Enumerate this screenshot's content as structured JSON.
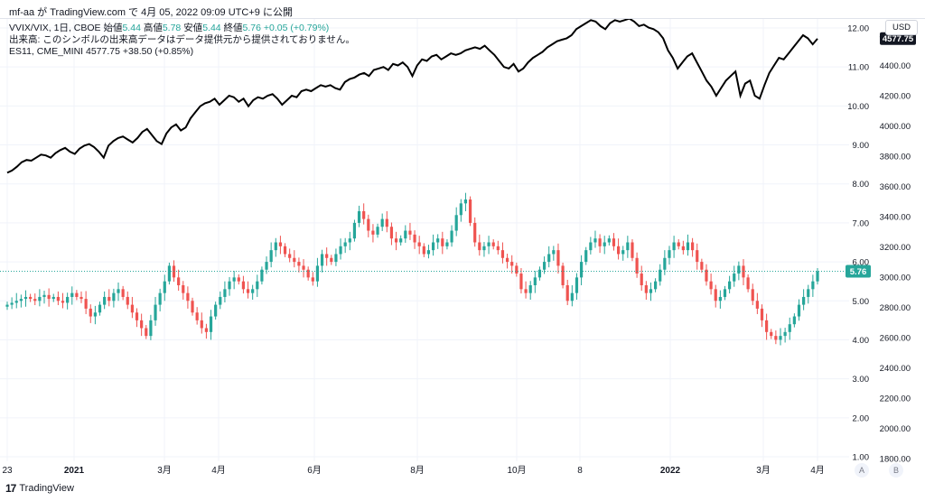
{
  "header": {
    "published_line": "mf-aa が TradingView.com で 4月 05, 2022 09:09 UTC+9 に公開"
  },
  "legend": {
    "line1_symbol": "VVIX/VIX, 1日, CBOE",
    "line1_open_label": "始値",
    "line1_open": "5.44",
    "line1_high_label": "高値",
    "line1_high": "5.78",
    "line1_low_label": "安値",
    "line1_low": "5.44",
    "line1_close_label": "終値",
    "line1_close": "5.76",
    "line1_change": "+0.05 (+0.79%)",
    "line2": "出来高: このシンボルの出来高データはデータ提供元から提供されておりません。",
    "line3_symbol": "ES11, CME_MINI",
    "line3_value": "4577.75",
    "line3_change": "+38.50 (+0.85%)"
  },
  "axis": {
    "currency_button": "USD",
    "right_btn_a": "A",
    "right_btn_b": "B"
  },
  "footer": {
    "brand": "TradingView",
    "logo_text": "17"
  },
  "colors": {
    "up": "#26a69a",
    "down": "#ef5350",
    "es_line": "#000000",
    "grid": "#f0f3fa",
    "last_label_vvix_bg": "#26a69a",
    "last_label_es_bg": "#131722"
  },
  "chart_data": {
    "type": "candlestick+line",
    "left_axis_ticks": [
      "1.00",
      "2.00",
      "3.00",
      "4.00",
      "5.00",
      "6.00",
      "7.00",
      "8.00",
      "9.00",
      "10.00",
      "11.00",
      "12.00"
    ],
    "right_axis_ticks": [
      "1800.00",
      "2000.00",
      "2200.00",
      "2400.00",
      "2600.00",
      "2800.00",
      "3000.00",
      "3200.00",
      "3400.00",
      "3600.00",
      "3800.00",
      "4000.00",
      "4200.00",
      "4400.00",
      "4600.00"
    ],
    "x_tick_labels": [
      {
        "label": "23"
      },
      {
        "label": "2021"
      },
      {
        "label": "3月"
      },
      {
        "label": "4月"
      },
      {
        "label": "6月"
      },
      {
        "label": "8月"
      },
      {
        "label": "10月"
      },
      {
        "label": "8"
      },
      {
        "label": "2022"
      },
      {
        "label": "3月"
      },
      {
        "label": "4月"
      }
    ],
    "vvix_vix_last": "5.76",
    "es_last": "4577.75",
    "es_series": {
      "name": "ES11",
      "values": [
        3690,
        3705,
        3730,
        3760,
        3775,
        3770,
        3790,
        3810,
        3805,
        3790,
        3820,
        3840,
        3855,
        3830,
        3815,
        3850,
        3870,
        3880,
        3860,
        3830,
        3790,
        3870,
        3900,
        3920,
        3930,
        3910,
        3890,
        3920,
        3960,
        3980,
        3940,
        3900,
        3880,
        3950,
        3990,
        4010,
        3970,
        3990,
        4050,
        4090,
        4130,
        4150,
        4160,
        4180,
        4140,
        4170,
        4200,
        4190,
        4160,
        4180,
        4130,
        4170,
        4190,
        4180,
        4200,
        4210,
        4180,
        4140,
        4170,
        4200,
        4190,
        4230,
        4240,
        4230,
        4250,
        4270,
        4260,
        4270,
        4250,
        4240,
        4290,
        4310,
        4320,
        4340,
        4350,
        4330,
        4370,
        4380,
        4390,
        4370,
        4410,
        4400,
        4420,
        4390,
        4330,
        4400,
        4440,
        4430,
        4460,
        4470,
        4440,
        4460,
        4480,
        4470,
        4480,
        4500,
        4510,
        4520,
        4510,
        4530,
        4500,
        4470,
        4430,
        4390,
        4380,
        4410,
        4360,
        4380,
        4420,
        4450,
        4470,
        4490,
        4520,
        4540,
        4560,
        4570,
        4580,
        4600,
        4640,
        4660,
        4680,
        4700,
        4690,
        4660,
        4640,
        4680,
        4700,
        4690,
        4700,
        4710,
        4690,
        4660,
        4670,
        4650,
        4640,
        4620,
        4580,
        4500,
        4450,
        4380,
        4420,
        4460,
        4480,
        4420,
        4360,
        4300,
        4260,
        4200,
        4250,
        4300,
        4330,
        4360,
        4200,
        4280,
        4300,
        4200,
        4180,
        4270,
        4350,
        4400,
        4450,
        4440,
        4480,
        4520,
        4560,
        4600,
        4580,
        4540,
        4577
      ]
    },
    "vvix_vix_series": {
      "name": "VVIX/VIX",
      "closes": [
        4.9,
        4.95,
        5.0,
        5.05,
        5.1,
        5.05,
        5.0,
        5.1,
        5.15,
        5.05,
        5.1,
        5.0,
        4.95,
        5.1,
        5.2,
        5.1,
        5.05,
        4.8,
        4.6,
        4.7,
        4.9,
        5.1,
        5.0,
        5.2,
        5.3,
        5.1,
        4.9,
        4.7,
        4.5,
        4.3,
        4.1,
        4.5,
        4.9,
        5.2,
        5.5,
        5.9,
        5.6,
        5.4,
        5.2,
        5.0,
        4.7,
        4.5,
        4.3,
        4.2,
        4.6,
        4.9,
        5.1,
        5.3,
        5.5,
        5.6,
        5.5,
        5.3,
        5.2,
        5.3,
        5.5,
        5.8,
        6.0,
        6.3,
        6.5,
        6.4,
        6.2,
        6.1,
        6.0,
        5.9,
        5.8,
        5.6,
        5.5,
        5.9,
        6.2,
        6.1,
        6.0,
        6.2,
        6.4,
        6.5,
        6.6,
        7.0,
        7.3,
        7.1,
        6.8,
        6.7,
        6.9,
        7.1,
        6.9,
        6.6,
        6.5,
        6.6,
        6.8,
        6.7,
        6.5,
        6.4,
        6.2,
        6.3,
        6.5,
        6.6,
        6.4,
        6.5,
        6.8,
        7.2,
        7.5,
        7.6,
        7.0,
        6.5,
        6.3,
        6.4,
        6.5,
        6.4,
        6.3,
        6.1,
        6.0,
        5.9,
        5.7,
        5.3,
        5.2,
        5.4,
        5.6,
        5.8,
        6.0,
        6.2,
        6.3,
        5.9,
        5.4,
        5.0,
        5.2,
        5.6,
        6.0,
        6.3,
        6.5,
        6.6,
        6.4,
        6.5,
        6.6,
        6.4,
        6.2,
        6.3,
        6.5,
        6.1,
        5.7,
        5.4,
        5.2,
        5.3,
        5.5,
        5.8,
        6.1,
        6.3,
        6.5,
        6.4,
        6.3,
        6.5,
        6.3,
        6.0,
        5.8,
        5.5,
        5.3,
        5.0,
        5.1,
        5.3,
        5.5,
        5.7,
        5.9,
        5.6,
        5.3,
        5.0,
        4.8,
        4.5,
        4.2,
        4.1,
        4.0,
        4.1,
        4.2,
        4.4,
        4.6,
        4.9,
        5.1,
        5.3,
        5.5,
        5.76
      ]
    }
  }
}
